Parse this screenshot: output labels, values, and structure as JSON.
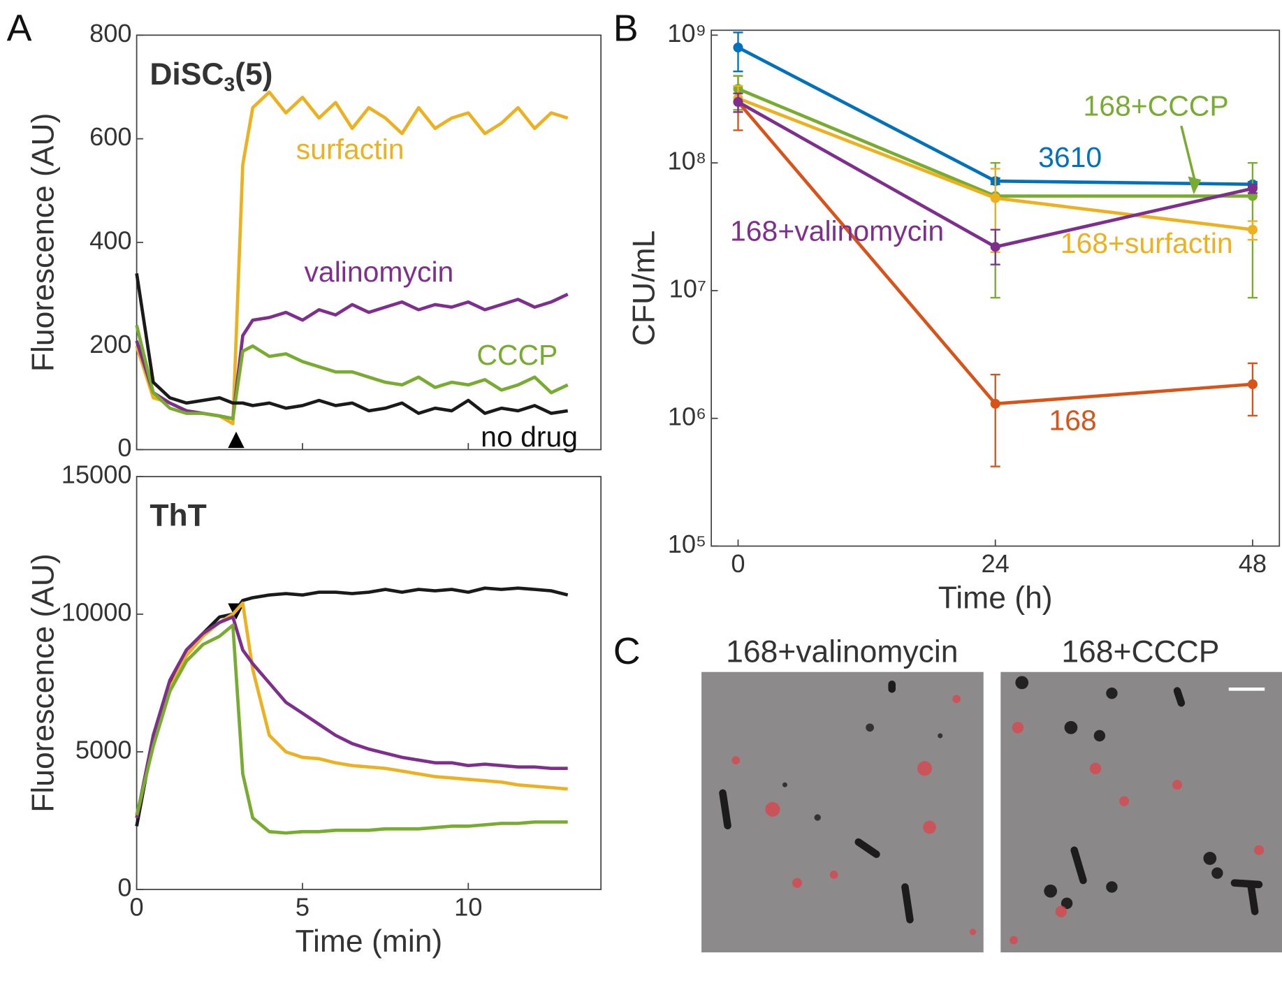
{
  "panel_labels": [
    "A",
    "B",
    "C"
  ],
  "chart_data": [
    {
      "type": "line",
      "title": [
        "DiSC",
        "3",
        "(5)"
      ],
      "y_label": "Fluorescence (AU)",
      "x": [
        0,
        0.5,
        1,
        1.5,
        2,
        2.5,
        2.9,
        3.2,
        3.5,
        4,
        4.5,
        5,
        5.5,
        6,
        6.5,
        7,
        7.5,
        8,
        8.5,
        9,
        9.5,
        10,
        10.5,
        11,
        11.5,
        12,
        12.5,
        13
      ],
      "xlim": [
        0,
        14
      ],
      "xtick_marks": [
        0,
        5,
        10
      ],
      "ylim": [
        0,
        800
      ],
      "yticks": [
        0,
        200,
        400,
        600,
        800
      ],
      "marker_x": 3,
      "series": [
        {
          "name": "surfactin",
          "color": "#EDB120",
          "values": [
            200,
            100,
            90,
            75,
            70,
            65,
            50,
            550,
            660,
            690,
            650,
            680,
            640,
            670,
            620,
            660,
            640,
            610,
            660,
            620,
            640,
            650,
            610,
            630,
            660,
            620,
            650,
            640
          ]
        },
        {
          "name": "valinomycin",
          "color": "#7E2F8E",
          "values": [
            210,
            110,
            90,
            75,
            70,
            65,
            60,
            220,
            250,
            255,
            265,
            250,
            270,
            260,
            280,
            265,
            275,
            285,
            270,
            280,
            275,
            285,
            270,
            280,
            290,
            275,
            285,
            300
          ]
        },
        {
          "name": "CCCP",
          "color": "#77AC30",
          "values": [
            240,
            110,
            80,
            70,
            70,
            65,
            60,
            190,
            200,
            180,
            185,
            170,
            160,
            150,
            150,
            140,
            130,
            125,
            140,
            120,
            130,
            125,
            135,
            115,
            125,
            140,
            110,
            125
          ]
        },
        {
          "name": "no drug",
          "color": "#1a1a1a",
          "values": [
            340,
            130,
            100,
            90,
            95,
            100,
            90,
            90,
            85,
            90,
            80,
            85,
            95,
            85,
            90,
            75,
            80,
            90,
            70,
            80,
            75,
            95,
            70,
            80,
            75,
            85,
            70,
            75
          ]
        }
      ]
    },
    {
      "type": "line",
      "title": [
        "ThT"
      ],
      "y_label": "Fluorescence (AU)",
      "x_label": "Time (min)",
      "x": [
        0,
        0.5,
        1,
        1.5,
        2,
        2.5,
        2.9,
        3.2,
        3.5,
        4,
        4.5,
        5,
        5.5,
        6,
        6.5,
        7,
        7.5,
        8,
        8.5,
        9,
        9.5,
        10,
        10.5,
        11,
        11.5,
        12,
        12.5,
        13
      ],
      "xlim": [
        0,
        14
      ],
      "xticks": [
        0,
        5,
        10
      ],
      "ylim": [
        0,
        15000
      ],
      "yticks": [
        0,
        5000,
        10000,
        15000
      ],
      "marker_x": 3,
      "series": [
        {
          "color": "#1a1a1a",
          "values": [
            2300,
            5500,
            7500,
            8700,
            9300,
            9900,
            10000,
            10500,
            10600,
            10700,
            10750,
            10700,
            10800,
            10800,
            10750,
            10800,
            10900,
            10800,
            10900,
            10850,
            10900,
            10800,
            10950,
            10900,
            10950,
            10900,
            10850,
            10700
          ]
        },
        {
          "color": "#EDB120",
          "values": [
            2600,
            5400,
            7300,
            8500,
            9200,
            9700,
            10000,
            10400,
            8000,
            5600,
            5000,
            4800,
            4750,
            4600,
            4500,
            4450,
            4400,
            4300,
            4200,
            4100,
            4050,
            4000,
            3950,
            3900,
            3800,
            3750,
            3700,
            3650
          ]
        },
        {
          "color": "#7E2F8E",
          "values": [
            2600,
            5600,
            7600,
            8700,
            9300,
            9700,
            9900,
            8700,
            8200,
            7500,
            6800,
            6400,
            6000,
            5600,
            5300,
            5100,
            4950,
            4800,
            4700,
            4600,
            4600,
            4500,
            4550,
            4500,
            4450,
            4450,
            4400,
            4400
          ]
        },
        {
          "color": "#77AC30",
          "values": [
            2700,
            5200,
            7200,
            8300,
            8900,
            9200,
            9600,
            4200,
            2600,
            2100,
            2050,
            2100,
            2100,
            2150,
            2150,
            2150,
            2200,
            2200,
            2200,
            2250,
            2300,
            2300,
            2350,
            2400,
            2400,
            2450,
            2450,
            2450
          ]
        }
      ]
    },
    {
      "type": "errorline",
      "log_y": true,
      "y_label": "CFU/mL",
      "x_label": "Time (h)",
      "x": [
        0,
        24,
        48
      ],
      "xlim": [
        -2.5,
        50.5
      ],
      "xticks": [
        0,
        24,
        48
      ],
      "ylim": [
        100000,
        1000000000
      ],
      "yticks": [
        {
          "value": 100000,
          "label": "10⁵"
        },
        {
          "value": 1000000,
          "label": "10⁶"
        },
        {
          "value": 10000000,
          "label": "10⁷"
        },
        {
          "value": 100000000,
          "label": "10⁸"
        },
        {
          "value": 1000000000,
          "label": "10⁹"
        }
      ],
      "series": [
        {
          "name": "3610",
          "color": "#0072BD",
          "values": [
            800000000,
            72000000,
            68000000
          ],
          "lower": [
            520000000,
            68000000,
            65000000
          ],
          "upper": [
            1050000000,
            76000000,
            71000000
          ]
        },
        {
          "name": "168",
          "color": "#D95319",
          "values": [
            300000000,
            1300000,
            1850000
          ],
          "lower": [
            180000000,
            420000,
            1050000
          ],
          "upper": [
            480000000,
            2200000,
            2700000
          ]
        },
        {
          "name": "168+CCCP",
          "color": "#77AC30",
          "values": [
            380000000,
            55000000,
            55000000
          ],
          "lower": [
            260000000,
            8800000,
            8800000
          ],
          "upper": [
            480000000,
            100000000,
            100000000
          ]
        },
        {
          "name": "168+surfactin",
          "color": "#EDB120",
          "values": [
            320000000,
            53000000,
            30000000
          ],
          "lower": [
            250000000,
            20000000,
            25000000
          ],
          "upper": [
            400000000,
            90000000,
            35000000
          ]
        },
        {
          "name": "168+valinomycin",
          "color": "#7E2F8E",
          "values": [
            300000000,
            22000000,
            63000000
          ],
          "lower": [
            250000000,
            16000000,
            58000000
          ],
          "upper": [
            350000000,
            30000000,
            68000000
          ]
        }
      ]
    }
  ],
  "micrographs": [
    {
      "title": "168+valinomycin"
    },
    {
      "title": "168+CCCP"
    }
  ]
}
